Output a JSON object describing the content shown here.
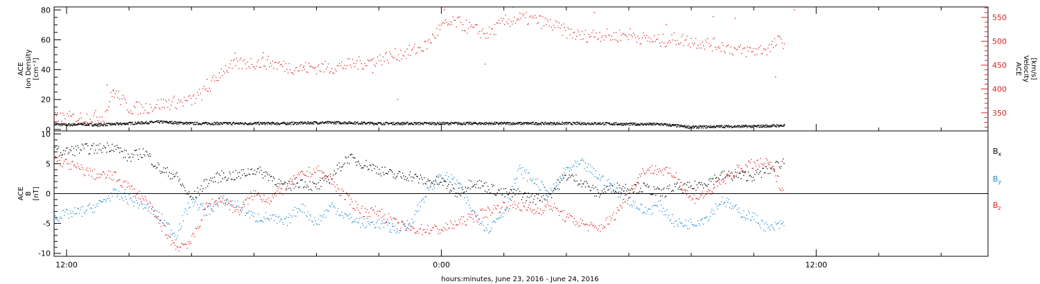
{
  "page": {
    "xlabel": "hours:minutes, June 23, 2016 - June 24, 2016",
    "x_ticks": [
      {
        "t": 12,
        "label": "12:00"
      },
      {
        "t": 24,
        "label": "0:00"
      },
      {
        "t": 36,
        "label": "12:00"
      }
    ],
    "xlim_hours": [
      11.6,
      41.5
    ],
    "colors": {
      "black": "#000000",
      "red": "#e02020",
      "blue": "#1e88d0"
    }
  },
  "chart_data": [
    {
      "type": "scatter",
      "panel": "plasma",
      "ylabel_left": [
        "ACE",
        "Ion Density",
        "[cm⁻³]"
      ],
      "ylabel_right": [
        "ACE",
        "Velocity",
        "[km/s]"
      ],
      "ylim_left": [
        -1,
        82
      ],
      "ylim_right": [
        312,
        572
      ],
      "yticks_left": [
        0,
        20,
        40,
        60,
        80
      ],
      "yticks_right": [
        350,
        400,
        450,
        500,
        550
      ],
      "series": [
        {
          "axis": "left",
          "color": "#000000",
          "x": [
            11.6,
            12,
            12.5,
            13,
            13.5,
            14,
            14.5,
            15,
            15.5,
            16,
            16.5,
            17,
            18,
            19,
            20,
            21,
            22,
            23,
            24,
            25,
            26,
            27,
            28,
            29,
            30,
            31,
            32,
            33,
            34,
            34.8,
            35
          ],
          "y": [
            3.5,
            3,
            3.5,
            3,
            3.5,
            4,
            4.5,
            5,
            4.5,
            4,
            4,
            4,
            4,
            4,
            4.5,
            4.5,
            4,
            4,
            4,
            4,
            4,
            4,
            4,
            4,
            3.5,
            3.5,
            1.5,
            2,
            2,
            2.5,
            2.5
          ]
        },
        {
          "axis": "right",
          "color": "#e02020",
          "x": [
            11.6,
            12.5,
            13.2,
            13.5,
            14,
            14.5,
            15,
            15.5,
            16,
            16.5,
            17,
            17.5,
            18,
            18.5,
            19,
            19.5,
            20,
            20.5,
            21,
            21.5,
            22,
            22.5,
            23,
            23.5,
            24,
            24.5,
            25,
            25.5,
            26,
            26.5,
            27,
            27.5,
            28,
            28.5,
            29,
            29.5,
            30,
            30.5,
            31,
            31.5,
            32,
            32.5,
            33,
            33.5,
            34,
            34.5,
            34.8,
            35
          ],
          "y": [
            338,
            340,
            342,
            395,
            360,
            360,
            368,
            372,
            375,
            398,
            440,
            452,
            455,
            455,
            447,
            443,
            445,
            445,
            450,
            455,
            462,
            470,
            478,
            490,
            530,
            540,
            525,
            515,
            540,
            548,
            545,
            535,
            520,
            510,
            515,
            510,
            515,
            505,
            500,
            505,
            500,
            495,
            490,
            480,
            480,
            485,
            500,
            498
          ]
        },
        {
          "axis": "right",
          "color": "#e02020",
          "style": "outliers",
          "x": [
            13.3,
            13.5,
            16.5,
            17.4,
            18.3,
            19.6,
            21.8,
            22.6,
            24.1,
            25.4,
            26.3,
            28.9,
            31.2,
            32.7,
            33.4,
            34.7,
            35.3
          ],
          "y": [
            408,
            398,
            420,
            475,
            476,
            448,
            434,
            378,
            566,
            452,
            571,
            560,
            535,
            552,
            548,
            425,
            566
          ]
        }
      ]
    },
    {
      "type": "scatter",
      "panel": "magnetic field",
      "ylabel_left": [
        "ACE",
        "B",
        "[nT]"
      ],
      "ylim": [
        -10.5,
        10.5
      ],
      "yticks": [
        -10,
        -5,
        0,
        5,
        10
      ],
      "zero_line": true,
      "legend": [
        {
          "label": "B",
          "sub": "x",
          "color": "#000000"
        },
        {
          "label": "B",
          "sub": "y",
          "color": "#1e88d0"
        },
        {
          "label": "B",
          "sub": "z",
          "color": "#e02020"
        }
      ],
      "series": [
        {
          "name": "Bx",
          "color": "#000000",
          "x": [
            11.6,
            12,
            12.5,
            13,
            13.5,
            14,
            14.5,
            15,
            15.5,
            16,
            16.5,
            17,
            17.5,
            18,
            18.5,
            19,
            19.5,
            20,
            20.5,
            21,
            21.5,
            22,
            22.5,
            23,
            23.5,
            24,
            24.5,
            25,
            25.5,
            26,
            26.5,
            27,
            27.5,
            28,
            28.5,
            29,
            29.5,
            30,
            30.5,
            31,
            31.5,
            32,
            32.5,
            33,
            33.5,
            34,
            34.5,
            35
          ],
          "y": [
            7,
            7,
            7.5,
            7.5,
            8,
            6,
            7,
            4,
            3,
            -1,
            2,
            3,
            3,
            4,
            3,
            1,
            2,
            1,
            3,
            6,
            5,
            4,
            3,
            3,
            2,
            2,
            0,
            2,
            1,
            0,
            0,
            -1,
            0,
            3,
            2,
            0,
            1,
            1,
            1,
            0,
            1,
            1,
            2,
            3,
            3,
            3,
            4,
            5.5
          ]
        },
        {
          "name": "By",
          "color": "#1e88d0",
          "x": [
            11.6,
            12,
            12.5,
            13,
            13.5,
            14,
            14.5,
            15,
            15.5,
            16,
            16.5,
            17,
            17.5,
            18,
            18.5,
            19,
            19.5,
            20,
            20.5,
            21,
            21.5,
            22,
            22.5,
            23,
            23.5,
            24,
            24.5,
            25,
            25.5,
            26,
            26.5,
            27,
            27.5,
            28,
            28.5,
            29,
            29.5,
            30,
            30.5,
            31,
            31.5,
            32,
            32.5,
            33,
            33.5,
            34,
            34.5,
            35
          ],
          "y": [
            -4,
            -3.5,
            -3,
            -2,
            0,
            -1,
            -2,
            -4,
            -7,
            -1,
            -3,
            -1,
            -2,
            -4,
            -4,
            -5,
            -2,
            -5,
            -2,
            -4,
            -5,
            -5,
            -6,
            -5,
            0,
            3,
            2,
            -3,
            -6,
            -3,
            4,
            2,
            0,
            4,
            5,
            3,
            1,
            -1,
            -3,
            -2,
            -5,
            -5,
            -4,
            -1,
            -3,
            -4,
            -6,
            -5
          ]
        },
        {
          "name": "Bz",
          "color": "#e02020",
          "x": [
            11.6,
            12,
            12.5,
            13,
            13.5,
            14,
            14.5,
            15,
            15.5,
            16,
            16.5,
            17,
            17.5,
            18,
            18.5,
            19,
            19.5,
            20,
            20.5,
            21,
            21.5,
            22,
            22.5,
            23,
            23.5,
            24,
            24.5,
            25,
            25.5,
            26,
            26.5,
            27,
            27.5,
            28,
            28.5,
            29,
            29.5,
            30,
            30.5,
            31,
            31.5,
            32,
            32.5,
            33,
            33.5,
            34,
            34.5,
            35
          ],
          "y": [
            6,
            5,
            4,
            3,
            3,
            1,
            -1,
            -5,
            -9,
            -8,
            -2,
            -1,
            -3,
            0,
            -1,
            1,
            3,
            4,
            2,
            -1,
            -3,
            -3,
            -5,
            -6,
            -6,
            -6,
            -5,
            -4,
            -3,
            -2,
            -2,
            -3,
            -2,
            -4,
            -5,
            -6,
            -4,
            0,
            4,
            4,
            3,
            -1,
            0,
            2,
            4,
            5,
            5,
            0
          ]
        }
      ]
    }
  ]
}
